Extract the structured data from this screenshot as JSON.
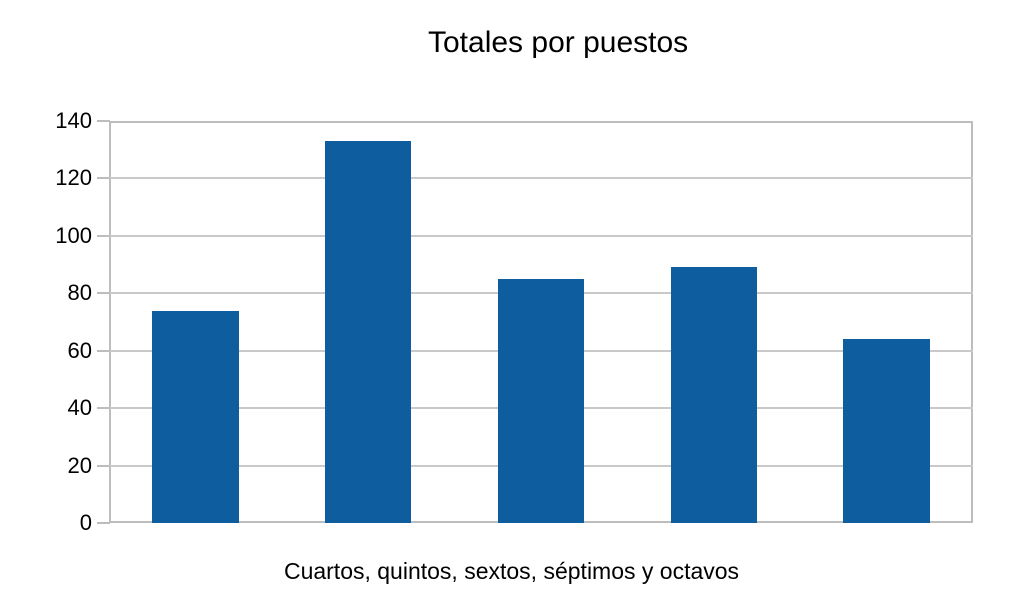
{
  "chart_data": {
    "type": "bar",
    "title": "Totales por puestos",
    "xlabel": "Cuartos, quintos, sextos, séptimos y octavos",
    "values": [
      74,
      133,
      85,
      89,
      64
    ],
    "ylim": [
      0,
      140
    ],
    "yticks": [
      0,
      20,
      40,
      60,
      80,
      100,
      120,
      140
    ],
    "ytick_labels": [
      "0",
      "20",
      "40",
      "60",
      "80",
      "100",
      "120",
      "140"
    ],
    "grid": "horizontal",
    "legend": "none",
    "colors": {
      "bar": "#0d5d9f",
      "grid": "#c9c9c9",
      "axis": "#bdbdbd",
      "text": "#000000",
      "background": "#ffffff"
    }
  }
}
